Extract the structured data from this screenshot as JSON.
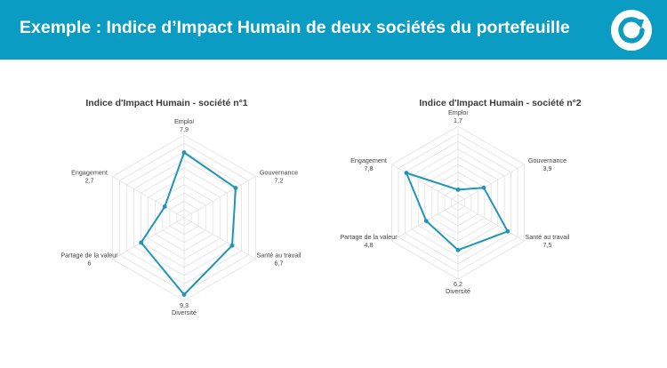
{
  "header": {
    "title": "Exemple : Indice d’Impact Humain de deux sociétés du portefeuille",
    "logo_icon": "circular-arrow-icon",
    "background": "#0b9cc3"
  },
  "chart_data": [
    {
      "type": "radar",
      "title": "Indice d'Impact Humain - société n°1",
      "axes": [
        "Emploi",
        "Gouvernance",
        "Santé au travail",
        "Diversité",
        "Partage de la valeur",
        "Engagement"
      ],
      "series": [
        {
          "values": [
            7.9,
            7.2,
            6.7,
            9.3,
            6,
            2.7
          ],
          "value_labels": [
            "7,9",
            "7,2",
            "6,7",
            "9,3",
            "6",
            "2,7"
          ],
          "color": "#2196b4"
        }
      ],
      "rlim": [
        0,
        10
      ],
      "grid": true
    },
    {
      "type": "radar",
      "title": "Indice d'Impact Humain - société n°2",
      "axes": [
        "Emploi",
        "Gouvernance",
        "Santé au travail",
        "Diversité",
        "Partage de la valeur",
        "Engagement"
      ],
      "series": [
        {
          "values": [
            1.7,
            3.9,
            7.5,
            6.2,
            4.8,
            7.8
          ],
          "value_labels": [
            "1,7",
            "3,9",
            "7,5",
            "6,2",
            "4,8",
            "7,8"
          ],
          "color": "#2196b4"
        }
      ],
      "rlim": [
        0,
        10
      ],
      "grid": true
    }
  ]
}
